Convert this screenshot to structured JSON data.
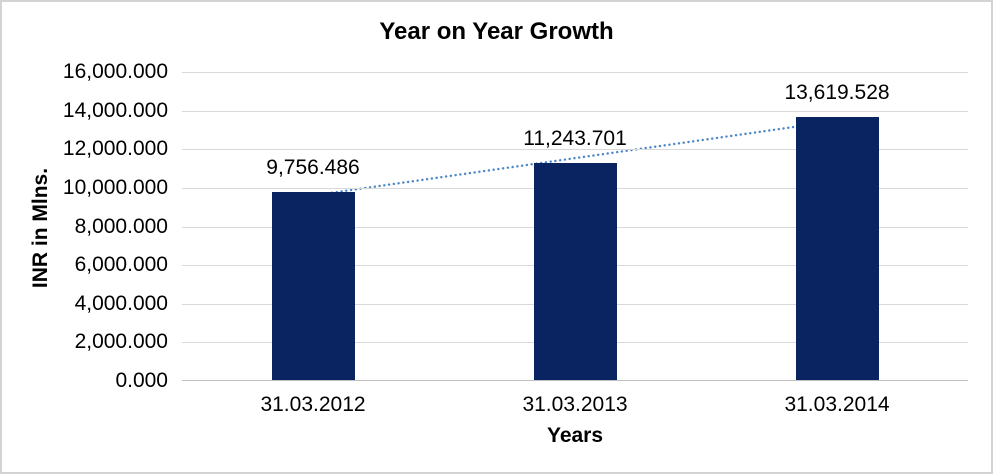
{
  "chart_data": {
    "type": "bar",
    "title": "Year on Year Growth",
    "xlabel": "Years",
    "ylabel": "INR in Mlns.",
    "categories": [
      "31.03.2012",
      "31.03.2013",
      "31.03.2014"
    ],
    "values": [
      9756.486,
      11243.701,
      13619.528
    ],
    "data_labels": [
      "9,756.486",
      "11,243.701",
      "13,619.528"
    ],
    "ylim": [
      0,
      16000
    ],
    "ytick_step": 2000,
    "ytick_labels": [
      "0.000",
      "2,000.000",
      "4,000.000",
      "6,000.000",
      "8,000.000",
      "10,000.000",
      "12,000.000",
      "14,000.000",
      "16,000.000"
    ],
    "grid": true,
    "legend": "none",
    "trendline": {
      "type": "linear",
      "style": "dotted"
    },
    "colors": {
      "bar": "#0a2361",
      "trendline": "#4a86c8",
      "gridline": "#d9d9d9",
      "axis_line": "#bfbfbf",
      "text": "#000000",
      "background": "#ffffff",
      "border": "#d3d3d3"
    }
  }
}
